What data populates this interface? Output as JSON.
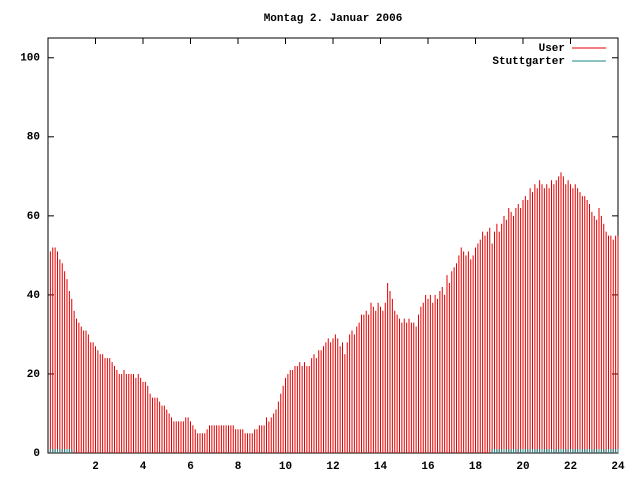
{
  "chart_data": {
    "type": "impulses",
    "title": "Montag 2. Januar 2006",
    "xlim": [
      0,
      24
    ],
    "xticks": [
      2,
      4,
      6,
      8,
      10,
      12,
      14,
      16,
      18,
      20,
      22,
      24
    ],
    "ylim": [
      0,
      105
    ],
    "yticks": [
      0,
      20,
      40,
      60,
      80,
      100
    ],
    "legend": "top-right",
    "x": [
      0.1,
      0.2,
      0.3,
      0.4,
      0.5,
      0.6,
      0.7,
      0.8,
      0.9,
      1.0,
      1.1,
      1.2,
      1.3,
      1.4,
      1.5,
      1.6,
      1.7,
      1.8,
      1.9,
      2.0,
      2.1,
      2.2,
      2.3,
      2.4,
      2.5,
      2.6,
      2.7,
      2.8,
      2.9,
      3.0,
      3.1,
      3.2,
      3.3,
      3.4,
      3.5,
      3.6,
      3.7,
      3.8,
      3.9,
      4.0,
      4.1,
      4.2,
      4.3,
      4.4,
      4.5,
      4.6,
      4.7,
      4.8,
      4.9,
      5.0,
      5.1,
      5.2,
      5.3,
      5.4,
      5.5,
      5.6,
      5.7,
      5.8,
      5.9,
      6.0,
      6.1,
      6.2,
      6.3,
      6.4,
      6.5,
      6.6,
      6.7,
      6.8,
      6.9,
      7.0,
      7.1,
      7.2,
      7.3,
      7.4,
      7.5,
      7.6,
      7.7,
      7.8,
      7.9,
      8.0,
      8.1,
      8.2,
      8.3,
      8.4,
      8.5,
      8.6,
      8.7,
      8.8,
      8.9,
      9.0,
      9.1,
      9.2,
      9.3,
      9.4,
      9.5,
      9.6,
      9.7,
      9.8,
      9.9,
      10.0,
      10.1,
      10.2,
      10.3,
      10.4,
      10.5,
      10.6,
      10.7,
      10.8,
      10.9,
      11.0,
      11.1,
      11.2,
      11.3,
      11.4,
      11.5,
      11.6,
      11.7,
      11.8,
      11.9,
      12.0,
      12.1,
      12.2,
      12.3,
      12.4,
      12.5,
      12.6,
      12.7,
      12.8,
      12.9,
      13.0,
      13.1,
      13.2,
      13.3,
      13.4,
      13.5,
      13.6,
      13.7,
      13.8,
      13.9,
      14.0,
      14.1,
      14.2,
      14.3,
      14.4,
      14.5,
      14.6,
      14.7,
      14.8,
      14.9,
      15.0,
      15.1,
      15.2,
      15.3,
      15.4,
      15.5,
      15.6,
      15.7,
      15.8,
      15.9,
      16.0,
      16.1,
      16.2,
      16.3,
      16.4,
      16.5,
      16.6,
      16.7,
      16.8,
      16.9,
      17.0,
      17.1,
      17.2,
      17.3,
      17.4,
      17.5,
      17.6,
      17.7,
      17.8,
      17.9,
      18.0,
      18.1,
      18.2,
      18.3,
      18.4,
      18.5,
      18.6,
      18.7,
      18.8,
      18.9,
      19.0,
      19.1,
      19.2,
      19.3,
      19.4,
      19.5,
      19.6,
      19.7,
      19.8,
      19.9,
      20.0,
      20.1,
      20.2,
      20.3,
      20.4,
      20.5,
      20.6,
      20.7,
      20.8,
      20.9,
      21.0,
      21.1,
      21.2,
      21.3,
      21.4,
      21.5,
      21.6,
      21.7,
      21.8,
      21.9,
      22.0,
      22.1,
      22.2,
      22.3,
      22.4,
      22.5,
      22.6,
      22.7,
      22.8,
      22.9,
      23.0,
      23.1,
      23.2,
      23.3,
      23.4,
      23.5,
      23.6,
      23.7,
      23.8,
      23.9,
      24.0
    ],
    "series": [
      {
        "name": "User",
        "color": "#e00000",
        "values": [
          51,
          52,
          52,
          51,
          49,
          48,
          46,
          44,
          41,
          39,
          36,
          34,
          33,
          32,
          31,
          31,
          30,
          28,
          28,
          27,
          26,
          25,
          25,
          24,
          24,
          24,
          23,
          22,
          21,
          20,
          20,
          21,
          20,
          20,
          20,
          20,
          19,
          20,
          19,
          18,
          18,
          17,
          15,
          14,
          14,
          14,
          13,
          12,
          12,
          11,
          10,
          9,
          8,
          8,
          8,
          8,
          8,
          9,
          9,
          8,
          7,
          6,
          5,
          5,
          5,
          5,
          6,
          7,
          7,
          7,
          7,
          7,
          7,
          7,
          7,
          7,
          7,
          7,
          6,
          6,
          6,
          6,
          5,
          5,
          5,
          5,
          6,
          6,
          7,
          7,
          7,
          9,
          8,
          9,
          10,
          11,
          13,
          15,
          17,
          19,
          20,
          21,
          21,
          22,
          22,
          23,
          22,
          23,
          22,
          22,
          24,
          25,
          24,
          26,
          26,
          27,
          28,
          29,
          28,
          29,
          30,
          29,
          27,
          28,
          25,
          28,
          30,
          31,
          30,
          32,
          33,
          35,
          35,
          36,
          35,
          38,
          37,
          36,
          38,
          37,
          36,
          38,
          43,
          41,
          39,
          36,
          35,
          34,
          33,
          34,
          33,
          34,
          33,
          33,
          32,
          35,
          37,
          38,
          40,
          39,
          40,
          38,
          40,
          39,
          41,
          42,
          40,
          45,
          43,
          46,
          47,
          48,
          50,
          52,
          51,
          50,
          51,
          49,
          50,
          52,
          53,
          54,
          56,
          55,
          56,
          57,
          53,
          56,
          58,
          56,
          58,
          60,
          59,
          62,
          61,
          60,
          62,
          63,
          62,
          64,
          65,
          64,
          67,
          66,
          68,
          67,
          69,
          68,
          67,
          68,
          67,
          69,
          68,
          69,
          70,
          71,
          70,
          68,
          69,
          68,
          67,
          68,
          67,
          66,
          65,
          65,
          64,
          63,
          61,
          60,
          59,
          62,
          60,
          58,
          56,
          55,
          55,
          54,
          55,
          55
        ]
      },
      {
        "name": "Stuttgarter",
        "color": "#1a8a8a",
        "values": [
          1,
          1,
          1,
          1,
          1,
          1,
          1,
          1,
          1,
          1,
          null,
          null,
          null,
          null,
          null,
          null,
          null,
          null,
          null,
          null,
          null,
          null,
          null,
          null,
          null,
          null,
          null,
          null,
          null,
          null,
          null,
          null,
          null,
          null,
          null,
          null,
          null,
          null,
          null,
          null,
          null,
          null,
          null,
          null,
          null,
          null,
          null,
          null,
          null,
          null,
          null,
          null,
          null,
          null,
          null,
          null,
          null,
          null,
          null,
          null,
          null,
          null,
          null,
          null,
          null,
          null,
          null,
          null,
          null,
          null,
          null,
          null,
          null,
          null,
          null,
          null,
          null,
          null,
          null,
          null,
          null,
          null,
          null,
          null,
          null,
          null,
          null,
          null,
          null,
          null,
          null,
          null,
          null,
          null,
          null,
          null,
          null,
          null,
          null,
          null,
          null,
          null,
          null,
          null,
          null,
          null,
          null,
          null,
          null,
          null,
          null,
          null,
          null,
          null,
          null,
          null,
          null,
          null,
          null,
          null,
          null,
          null,
          null,
          null,
          null,
          null,
          null,
          null,
          null,
          null,
          null,
          null,
          null,
          null,
          null,
          null,
          null,
          null,
          null,
          null,
          null,
          null,
          null,
          null,
          null,
          null,
          null,
          null,
          null,
          null,
          null,
          null,
          null,
          null,
          null,
          null,
          null,
          null,
          null,
          null,
          null,
          null,
          null,
          null,
          null,
          null,
          null,
          null,
          null,
          null,
          null,
          null,
          null,
          null,
          null,
          null,
          null,
          null,
          null,
          null,
          null,
          null,
          null,
          null,
          null,
          null,
          1,
          1,
          1,
          1,
          1,
          1,
          1,
          1,
          1,
          1,
          1,
          1,
          1,
          1,
          1,
          1,
          1,
          1,
          1,
          1,
          1,
          1,
          1,
          1,
          1,
          1,
          1,
          1,
          1,
          1,
          1,
          1,
          1,
          1,
          1,
          1,
          1,
          1,
          1,
          1,
          1,
          1,
          1,
          1,
          1,
          1,
          1,
          1,
          1,
          1,
          1,
          1,
          1,
          1
        ]
      }
    ]
  }
}
